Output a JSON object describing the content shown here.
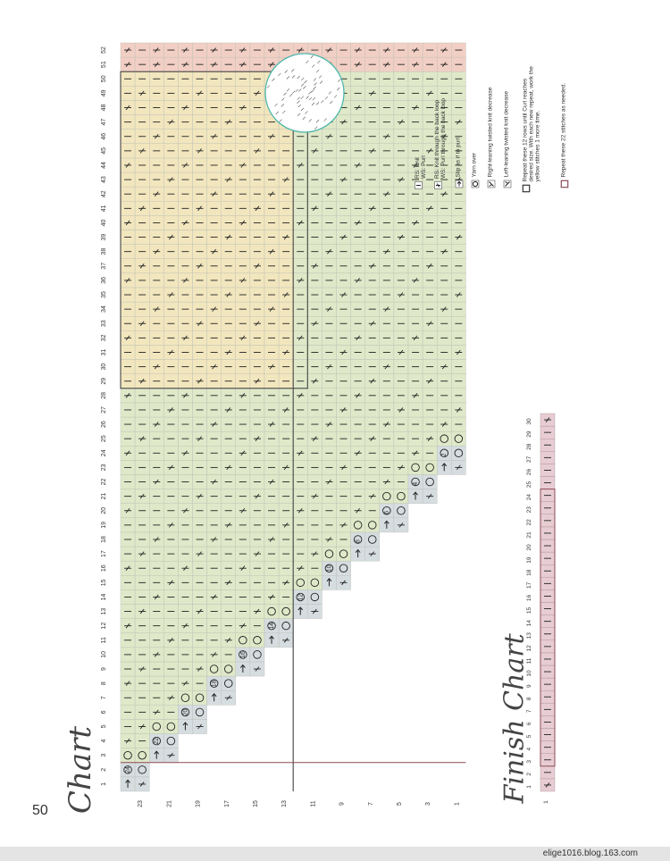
{
  "page_number": "50",
  "main_chart": {
    "title": "Chart",
    "stitch_columns": 52,
    "stitch_numbers": [
      "1",
      "2",
      "3",
      "4",
      "5",
      "6",
      "7",
      "8",
      "9",
      "10",
      "11",
      "12",
      "13",
      "14",
      "15",
      "16",
      "17",
      "18",
      "19",
      "20",
      "21",
      "22",
      "23",
      "24",
      "25",
      "26",
      "27",
      "28",
      "29",
      "30",
      "31",
      "32",
      "33",
      "34",
      "35",
      "36",
      "37",
      "38",
      "39",
      "40",
      "41",
      "42",
      "43",
      "44",
      "45",
      "46",
      "47",
      "48",
      "49",
      "50",
      "51",
      "52"
    ],
    "odd_row_labels": [
      "1",
      "3",
      "5",
      "7",
      "9",
      "11",
      "13",
      "15",
      "17",
      "19",
      "21",
      "23"
    ],
    "even_row_labels": [
      "2",
      "4",
      "6",
      "8",
      "10",
      "12",
      "14",
      "16",
      "18",
      "20",
      "22",
      "24"
    ],
    "section_colors": {
      "grey": "#d6dde0",
      "green": "#dfe8c8",
      "yellow": "#f2e6be",
      "pink": "#f2cfc4",
      "outline": "#444444"
    }
  },
  "finish_chart": {
    "title": "Finish Chart",
    "stitch_numbers": [
      "1",
      "2",
      "3",
      "4",
      "5",
      "6",
      "7",
      "8",
      "9",
      "10",
      "11",
      "12",
      "13",
      "14",
      "15",
      "16",
      "17",
      "18",
      "19",
      "20",
      "21",
      "22",
      "23",
      "24",
      "25",
      "26",
      "27",
      "28",
      "29",
      "30"
    ],
    "row_label": "1",
    "fill_color": "#e7cdd3"
  },
  "legend": [
    {
      "symbol": "knit",
      "text": "RS: Knit\nWS: Purl"
    },
    {
      "symbol": "tbl",
      "text": "RS: Knit through the back loop\nWS: Purl through the back loop"
    },
    {
      "symbol": "slip",
      "text": "Slip as if to purl"
    },
    {
      "symbol": "yo",
      "text": "Yarn over"
    },
    {
      "symbol": "rdec",
      "text": "Right-leaning twisted knit decrease"
    },
    {
      "symbol": "ldec",
      "text": "Left-leaning twisted knit decrease"
    },
    {
      "symbol": "box-dark",
      "text": "Repeat these 12 rows until Curl reaches desired size. With each new repeat, work the yellow stitches 1 more time."
    },
    {
      "symbol": "box-pink",
      "text": "Repeat these 22 stitches as needed."
    }
  ],
  "footer": {
    "watermark": "elige1016.blog.163.com"
  }
}
